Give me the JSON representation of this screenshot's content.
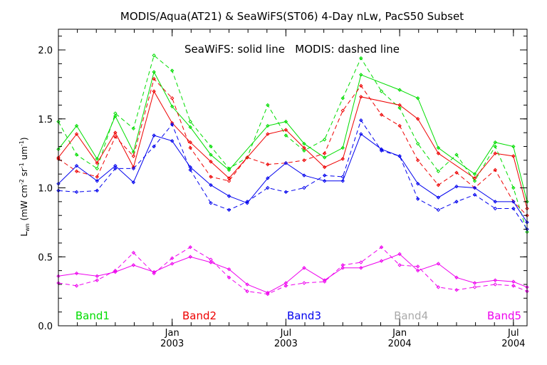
{
  "chart_data": {
    "type": "line",
    "title": "MODIS/Aqua(AT21) & SeaWiFS(ST06) 4-Day nLw, PacS50 Subset",
    "annotation": "SeaWiFS: solid line   MODIS: dashed line",
    "ylabel": {
      "base": "L",
      "sub": "wn",
      "p1": " (mW cm",
      "s1": "-2",
      "p2": " sr",
      "s2": "-1",
      "p3": " um",
      "s3": "-1",
      "p4": ")"
    },
    "xlim": [
      2002.5,
      2004.56
    ],
    "ylim": [
      0.0,
      2.15
    ],
    "yticks": [
      0.0,
      0.5,
      1.0,
      1.5,
      2.0
    ],
    "ytick_labels": [
      "0.0",
      "0.5",
      "1.0",
      "1.5",
      "2.0"
    ],
    "xticks": [
      {
        "x": 2003.0,
        "month": "Jan",
        "year": "2003"
      },
      {
        "x": 2003.5,
        "month": "Jul",
        "year": "2003"
      },
      {
        "x": 2004.0,
        "month": "Jan",
        "year": "2004"
      },
      {
        "x": 2004.5,
        "month": "Jul",
        "year": "2004"
      }
    ],
    "x_minor_step": 0.0833333,
    "line_styles": {
      "seawifs": "solid",
      "modis": "dashed"
    },
    "series": [
      {
        "name": "Band1",
        "instrument": "SeaWiFS",
        "color": "#00dd00",
        "x": [
          2002.5,
          2002.58,
          2002.67,
          2002.75,
          2002.83,
          2002.92,
          2003.0,
          2003.08,
          2003.17,
          2003.25,
          2003.42,
          2003.5,
          2003.58,
          2003.67,
          2003.75,
          2003.83,
          2004.0,
          2004.08,
          2004.17,
          2004.33,
          2004.42,
          2004.5,
          2004.56
        ],
        "y": [
          1.28,
          1.45,
          1.21,
          1.52,
          1.26,
          1.84,
          1.59,
          1.44,
          1.24,
          1.13,
          1.45,
          1.48,
          1.32,
          1.22,
          1.29,
          1.82,
          1.71,
          1.65,
          1.29,
          1.1,
          1.33,
          1.3,
          0.9
        ]
      },
      {
        "name": "Band1",
        "instrument": "MODIS",
        "color": "#00dd00",
        "x": [
          2002.5,
          2002.58,
          2002.67,
          2002.75,
          2002.83,
          2002.92,
          2003.0,
          2003.08,
          2003.17,
          2003.25,
          2003.33,
          2003.42,
          2003.5,
          2003.58,
          2003.67,
          2003.75,
          2003.83,
          2003.92,
          2004.0,
          2004.08,
          2004.17,
          2004.25,
          2004.33,
          2004.42,
          2004.5,
          2004.56
        ],
        "y": [
          1.48,
          1.24,
          1.14,
          1.54,
          1.43,
          1.96,
          1.85,
          1.48,
          1.3,
          1.14,
          1.22,
          1.6,
          1.38,
          1.27,
          1.35,
          1.65,
          1.94,
          1.7,
          1.58,
          1.32,
          1.12,
          1.24,
          1.05,
          1.3,
          1.0,
          0.68
        ]
      },
      {
        "name": "Band2",
        "instrument": "SeaWiFS",
        "color": "#ee0000",
        "x": [
          2002.5,
          2002.58,
          2002.67,
          2002.75,
          2002.83,
          2002.92,
          2003.0,
          2003.08,
          2003.17,
          2003.25,
          2003.42,
          2003.5,
          2003.58,
          2003.67,
          2003.75,
          2003.83,
          2004.0,
          2004.08,
          2004.17,
          2004.33,
          2004.42,
          2004.5,
          2004.56
        ],
        "y": [
          1.22,
          1.39,
          1.18,
          1.4,
          1.15,
          1.7,
          1.47,
          1.33,
          1.19,
          1.07,
          1.39,
          1.42,
          1.29,
          1.15,
          1.21,
          1.66,
          1.6,
          1.5,
          1.25,
          1.07,
          1.25,
          1.23,
          0.85
        ]
      },
      {
        "name": "Band2",
        "instrument": "MODIS",
        "color": "#ee0000",
        "x": [
          2002.5,
          2002.58,
          2002.67,
          2002.75,
          2002.83,
          2002.92,
          2003.0,
          2003.08,
          2003.17,
          2003.25,
          2003.33,
          2003.42,
          2003.5,
          2003.58,
          2003.67,
          2003.75,
          2003.83,
          2003.92,
          2004.0,
          2004.08,
          2004.17,
          2004.25,
          2004.33,
          2004.42,
          2004.5,
          2004.56
        ],
        "y": [
          1.21,
          1.12,
          1.08,
          1.37,
          1.23,
          1.79,
          1.65,
          1.29,
          1.08,
          1.05,
          1.22,
          1.17,
          1.18,
          1.2,
          1.25,
          1.56,
          1.74,
          1.53,
          1.45,
          1.2,
          1.02,
          1.11,
          1.0,
          1.13,
          0.9,
          0.8
        ]
      },
      {
        "name": "Band3",
        "instrument": "SeaWiFS",
        "color": "#0000ee",
        "x": [
          2002.5,
          2002.58,
          2002.67,
          2002.75,
          2002.83,
          2002.92,
          2003.0,
          2003.08,
          2003.17,
          2003.25,
          2003.33,
          2003.42,
          2003.5,
          2003.58,
          2003.67,
          2003.75,
          2003.83,
          2003.92,
          2004.0,
          2004.08,
          2004.17,
          2004.25,
          2004.33,
          2004.42,
          2004.5,
          2004.56
        ],
        "y": [
          1.03,
          1.16,
          1.05,
          1.16,
          1.04,
          1.38,
          1.34,
          1.15,
          1.02,
          0.94,
          0.89,
          1.07,
          1.18,
          1.09,
          1.05,
          1.05,
          1.39,
          1.28,
          1.23,
          1.03,
          0.93,
          1.01,
          1.0,
          0.9,
          0.9,
          0.75
        ]
      },
      {
        "name": "Band3",
        "instrument": "MODIS",
        "color": "#0000ee",
        "x": [
          2002.5,
          2002.58,
          2002.67,
          2002.75,
          2002.83,
          2002.92,
          2003.0,
          2003.08,
          2003.17,
          2003.25,
          2003.33,
          2003.42,
          2003.5,
          2003.58,
          2003.67,
          2003.75,
          2003.83,
          2003.92,
          2004.0,
          2004.08,
          2004.17,
          2004.25,
          2004.33,
          2004.42,
          2004.5,
          2004.56
        ],
        "y": [
          0.98,
          0.97,
          0.98,
          1.14,
          1.14,
          1.3,
          1.46,
          1.13,
          0.89,
          0.84,
          0.9,
          1.0,
          0.97,
          1.0,
          1.09,
          1.08,
          1.49,
          1.27,
          1.23,
          0.92,
          0.84,
          0.9,
          0.95,
          0.85,
          0.85,
          0.7
        ]
      },
      {
        "name": "Band5",
        "instrument": "SeaWiFS",
        "color": "#ee00ee",
        "x": [
          2002.5,
          2002.58,
          2002.67,
          2002.75,
          2002.83,
          2002.92,
          2003.0,
          2003.08,
          2003.17,
          2003.25,
          2003.33,
          2003.42,
          2003.5,
          2003.58,
          2003.67,
          2003.75,
          2003.83,
          2003.92,
          2004.0,
          2004.08,
          2004.17,
          2004.25,
          2004.33,
          2004.42,
          2004.5,
          2004.56
        ],
        "y": [
          0.36,
          0.38,
          0.36,
          0.39,
          0.44,
          0.39,
          0.45,
          0.5,
          0.46,
          0.41,
          0.3,
          0.24,
          0.31,
          0.42,
          0.33,
          0.42,
          0.42,
          0.47,
          0.52,
          0.4,
          0.45,
          0.35,
          0.31,
          0.33,
          0.32,
          0.28
        ]
      },
      {
        "name": "Band5",
        "instrument": "MODIS",
        "color": "#ee00ee",
        "x": [
          2002.5,
          2002.58,
          2002.67,
          2002.75,
          2002.83,
          2002.92,
          2003.0,
          2003.08,
          2003.17,
          2003.25,
          2003.33,
          2003.42,
          2003.5,
          2003.58,
          2003.67,
          2003.75,
          2003.83,
          2003.92,
          2004.0,
          2004.08,
          2004.17,
          2004.25,
          2004.33,
          2004.42,
          2004.5,
          2004.56
        ],
        "y": [
          0.31,
          0.29,
          0.33,
          0.4,
          0.53,
          0.38,
          0.49,
          0.57,
          0.48,
          0.35,
          0.25,
          0.23,
          0.29,
          0.31,
          0.32,
          0.44,
          0.46,
          0.57,
          0.44,
          0.43,
          0.28,
          0.26,
          0.28,
          0.3,
          0.29,
          0.25
        ]
      }
    ],
    "legend": [
      {
        "label": "Band1",
        "color": "#00dd00",
        "x": 2002.65
      },
      {
        "label": "Band2",
        "color": "#ee0000",
        "x": 2003.12
      },
      {
        "label": "Band3",
        "color": "#0000ee",
        "x": 2003.58
      },
      {
        "label": "Band4",
        "color": "#aaaaaa",
        "x": 2004.05
      },
      {
        "label": "Band5",
        "color": "#ee00ee",
        "x": 2004.46
      }
    ]
  }
}
